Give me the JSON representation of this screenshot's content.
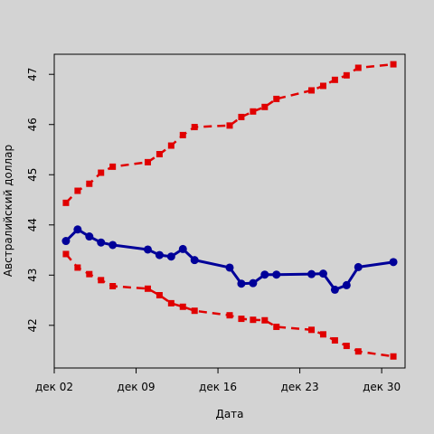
{
  "chart_data": {
    "type": "line",
    "xlabel": "Дата",
    "ylabel": "Австралийский доллар",
    "x": [
      "2021-12-03",
      "2021-12-04",
      "2021-12-05",
      "2021-12-06",
      "2021-12-07",
      "2021-12-10",
      "2021-12-11",
      "2021-12-12",
      "2021-12-13",
      "2021-12-14",
      "2021-12-17",
      "2021-12-18",
      "2021-12-19",
      "2021-12-20",
      "2021-12-21",
      "2021-12-24",
      "2021-12-25",
      "2021-12-26",
      "2021-12-27",
      "2021-12-28",
      "2021-12-31"
    ],
    "series": [
      {
        "color": "#e00000",
        "style": "dashed",
        "values": [
          44.44,
          44.68,
          44.82,
          45.04,
          45.16,
          45.25,
          45.41,
          45.58,
          45.79,
          45.95,
          45.98,
          46.15,
          46.26,
          46.35,
          46.51,
          46.68,
          46.77,
          46.89,
          46.98,
          47.13,
          47.2
        ]
      },
      {
        "color": "#000099",
        "style": "solid",
        "values": [
          43.68,
          43.91,
          43.77,
          43.65,
          43.6,
          43.51,
          43.4,
          43.37,
          43.52,
          43.3,
          43.15,
          42.83,
          42.84,
          43.01,
          43.01,
          43.02,
          43.03,
          42.71,
          42.8,
          43.16,
          43.26
        ]
      },
      {
        "color": "#e00000",
        "style": "dashed",
        "values": [
          43.42,
          43.15,
          43.02,
          42.9,
          42.78,
          42.73,
          42.6,
          42.44,
          42.37,
          42.29,
          42.2,
          42.13,
          42.11,
          42.1,
          41.97,
          41.91,
          41.82,
          41.7,
          41.59,
          41.48,
          41.38
        ]
      }
    ],
    "x_ticks": [
      {
        "value": "2021-12-02",
        "label": "дек 02"
      },
      {
        "value": "2021-12-09",
        "label": "дек 09"
      },
      {
        "value": "2021-12-16",
        "label": "дек 16"
      },
      {
        "value": "2021-12-23",
        "label": "дек 23"
      },
      {
        "value": "2021-12-30",
        "label": "дек 30"
      }
    ],
    "y_ticks": [
      42,
      43,
      44,
      45,
      46,
      47
    ],
    "xlim": [
      "2021-12-02",
      "2022-01-01"
    ],
    "ylim": [
      41.15,
      47.4
    ],
    "grid": false,
    "legend": false,
    "background": "#d3d3d3"
  }
}
